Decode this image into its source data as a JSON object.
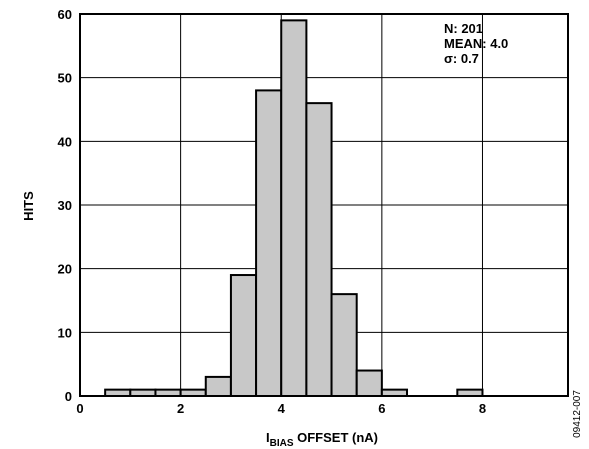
{
  "chart_data": {
    "type": "bar",
    "bin_width": 0.5,
    "bin_starts": [
      0.5,
      1.0,
      1.5,
      2.0,
      2.5,
      3.0,
      3.5,
      4.0,
      4.5,
      5.0,
      5.5,
      6.0,
      6.5,
      7.0,
      7.5,
      8.0,
      8.5,
      9.0
    ],
    "values": [
      1,
      1,
      1,
      1,
      3,
      19,
      48,
      59,
      46,
      16,
      4,
      1,
      0,
      0,
      1,
      0,
      0,
      0
    ],
    "xlim": [
      0,
      9.7
    ],
    "ylim": [
      0,
      60
    ],
    "x_ticks": [
      "0",
      "2",
      "4",
      "6",
      "8"
    ],
    "y_ticks": [
      "0",
      "10",
      "20",
      "30",
      "40",
      "50",
      "60"
    ],
    "xlabel_main": "I",
    "xlabel_sub": "BIAS",
    "xlabel_rest": " OFFSET (nA)",
    "ylabel": "HITS",
    "grid": true,
    "annotations": [
      "N: 201",
      "MEAN: 4.0",
      "σ: 0.7"
    ],
    "bar_fill": "#c8c8c8",
    "bar_stroke": "#000000",
    "figure_id": "09412-007"
  }
}
